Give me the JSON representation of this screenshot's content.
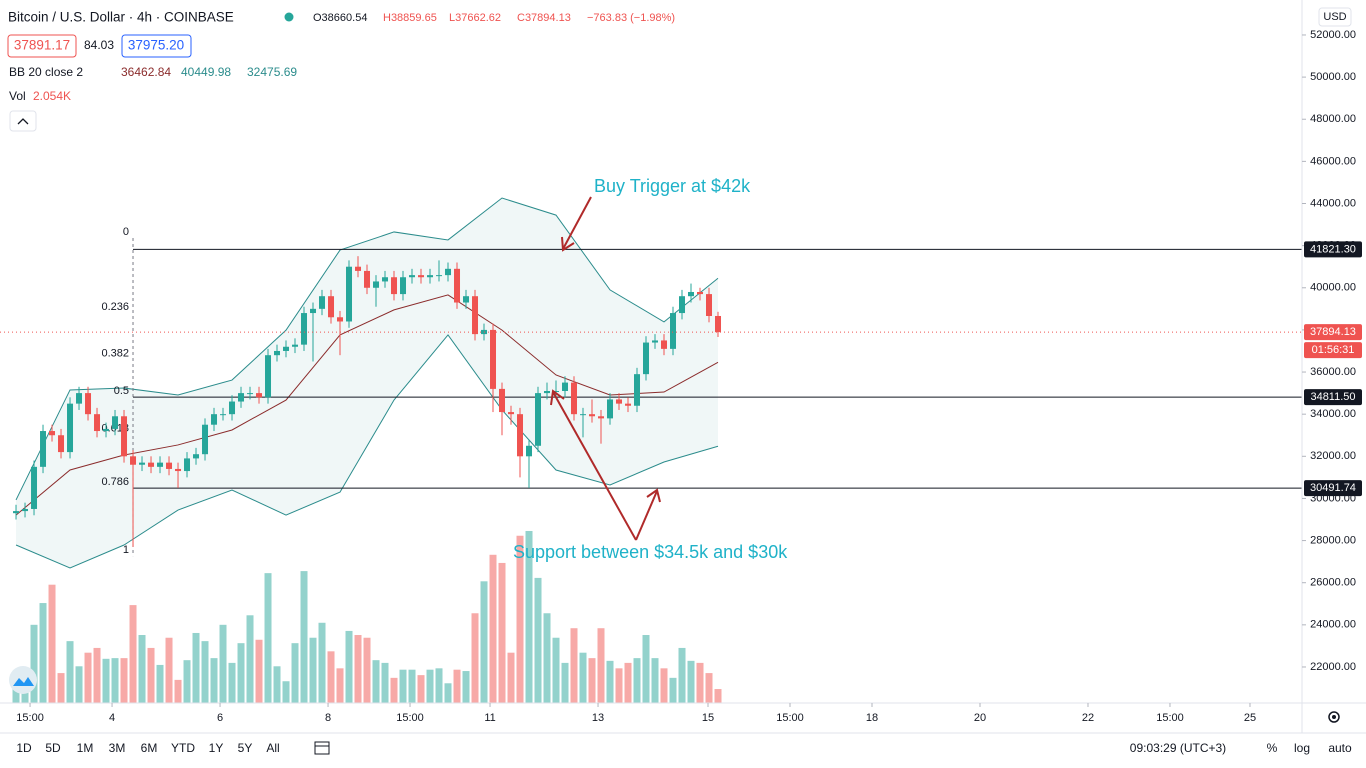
{
  "header": {
    "symbol": "Bitcoin / U.S. Dollar · 4h · COINBASE",
    "ohlc": [
      "O38660.54",
      "H38859.65",
      "L37662.62",
      "C37894.13",
      "−763.83 (−1.98%)"
    ]
  },
  "trade": {
    "sell": "37891.17",
    "spread": "84.03",
    "buy": "37975.20"
  },
  "indicators": {
    "bb_name": "BB 20 close 2",
    "bb_values": [
      "36462.84",
      "40449.98",
      "32475.69"
    ],
    "vol_name": "Vol",
    "vol_value": "2.054K"
  },
  "currency": "USD",
  "chart_data": {
    "type": "candlestick",
    "xlim": [
      -1.78,
      142.89
    ],
    "ylim": [
      20290,
      53660
    ],
    "grid": false,
    "up_color": "#26a69a",
    "down_color": "#ef5350",
    "yticks": [
      {
        "value": 22000,
        "label": "22000.00"
      },
      {
        "value": 24000,
        "label": "24000.00"
      },
      {
        "value": 26000,
        "label": "26000.00"
      },
      {
        "value": 28000,
        "label": "28000.00"
      },
      {
        "value": 30000,
        "label": "30000.00"
      },
      {
        "value": 32000,
        "label": "32000.00"
      },
      {
        "value": 34000,
        "label": "34000.00"
      },
      {
        "value": 36000,
        "label": "36000.00"
      },
      {
        "value": 38000,
        "label": "38000.00"
      },
      {
        "value": 40000,
        "label": "40000.00"
      },
      {
        "value": 42000,
        "label": "42000.00"
      },
      {
        "value": 44000,
        "label": "44000.00"
      },
      {
        "value": 46000,
        "label": "46000.00"
      },
      {
        "value": 48000,
        "label": "48000.00"
      },
      {
        "value": 50000,
        "label": "50000.00"
      },
      {
        "value": 52000,
        "label": "52000.00"
      }
    ],
    "xticks": [
      {
        "value": 1.56,
        "label": "15:00"
      },
      {
        "value": 10.67,
        "label": "4"
      },
      {
        "value": 22.67,
        "label": "6"
      },
      {
        "value": 34.67,
        "label": "8"
      },
      {
        "value": 43.78,
        "label": "15:00"
      },
      {
        "value": 52.67,
        "label": "11"
      },
      {
        "value": 64.67,
        "label": "13"
      },
      {
        "value": 76.89,
        "label": "15"
      },
      {
        "value": 86,
        "label": "15:00"
      },
      {
        "value": 95.11,
        "label": "18"
      },
      {
        "value": 107.11,
        "label": "20"
      },
      {
        "value": 119.11,
        "label": "22"
      },
      {
        "value": 128.22,
        "label": "15:00"
      },
      {
        "value": 137.11,
        "label": "25"
      }
    ],
    "open": [
      29300,
      29400,
      29500,
      31500,
      33200,
      33000,
      32200,
      34500,
      35000,
      34000,
      33200,
      33300,
      33900,
      32000,
      31600,
      31700,
      31500,
      31700,
      31400,
      31300,
      31900,
      32100,
      33500,
      34000,
      34000,
      34600,
      35000,
      35000,
      34800,
      36800,
      37000,
      37200,
      37300,
      38800,
      39000,
      39600,
      38600,
      38400,
      41000,
      40800,
      40000,
      40300,
      40500,
      39700,
      40500,
      40600,
      40500,
      40600,
      40600,
      40900,
      39300,
      39600,
      37800,
      38000,
      35200,
      34100,
      34000,
      32000,
      32500,
      35000,
      35100,
      35100,
      35500,
      34000,
      34000,
      33900,
      33800,
      34700,
      34500,
      34400,
      35900,
      37400,
      37500,
      37100,
      38800,
      39600,
      39800,
      39700,
      38660.54
    ],
    "high": [
      29700,
      29800,
      31800,
      33500,
      33500,
      33300,
      34800,
      35300,
      35300,
      34300,
      33600,
      34200,
      34200,
      32300,
      32000,
      32000,
      32000,
      32000,
      31700,
      32200,
      32400,
      33800,
      34300,
      34300,
      34900,
      35300,
      35300,
      35300,
      37100,
      37300,
      37500,
      37600,
      39100,
      39300,
      39900,
      39900,
      38900,
      41300,
      41500,
      41100,
      40600,
      40800,
      40800,
      40800,
      40900,
      40900,
      40900,
      41300,
      41200,
      41200,
      39900,
      39900,
      38300,
      38300,
      35500,
      34400,
      34300,
      32800,
      35300,
      35500,
      35600,
      35800,
      35800,
      34300,
      34700,
      34200,
      35000,
      35000,
      34800,
      36200,
      37700,
      37800,
      37800,
      39100,
      39900,
      40200,
      40000,
      40000,
      38859.65
    ],
    "low": [
      29000,
      29100,
      29200,
      31200,
      32700,
      31900,
      31900,
      34200,
      33700,
      32900,
      32900,
      33000,
      31700,
      27700,
      31300,
      31200,
      31200,
      31100,
      30500,
      31000,
      31600,
      31800,
      33200,
      33700,
      33700,
      34300,
      34700,
      34500,
      34500,
      36500,
      36700,
      36900,
      37000,
      36500,
      38700,
      38300,
      36800,
      38100,
      40500,
      39700,
      39100,
      40000,
      39400,
      39400,
      40200,
      40200,
      40200,
      40300,
      40300,
      39000,
      39000,
      37500,
      37500,
      34100,
      33000,
      33500,
      31000,
      30500,
      32200,
      34700,
      34800,
      34800,
      33700,
      32900,
      33600,
      32600,
      33500,
      34200,
      34100,
      34100,
      35600,
      37100,
      36800,
      36800,
      38500,
      39300,
      39400,
      38360,
      37662.62
    ],
    "close": [
      29400,
      29500,
      31500,
      33200,
      33000,
      32200,
      34500,
      35000,
      34000,
      33200,
      33300,
      33900,
      32000,
      31600,
      31700,
      31500,
      31700,
      31400,
      31300,
      31900,
      32100,
      33500,
      34000,
      34000,
      34600,
      35000,
      35000,
      34800,
      36800,
      37000,
      37200,
      37300,
      38800,
      39000,
      39600,
      38600,
      38400,
      41000,
      40800,
      40000,
      40300,
      40500,
      39700,
      40500,
      40600,
      40500,
      40600,
      40600,
      40900,
      39300,
      39600,
      37800,
      38000,
      35200,
      34100,
      34000,
      32000,
      32500,
      35000,
      35100,
      35100,
      35500,
      34000,
      34000,
      33900,
      33800,
      34700,
      34500,
      34400,
      35900,
      37400,
      37500,
      37100,
      38800,
      39600,
      39800,
      39700,
      38660,
      37894.13
    ],
    "bands": {
      "index": [
        0,
        6,
        12,
        18,
        24,
        30,
        36,
        42,
        48,
        54,
        60,
        66,
        72,
        78
      ],
      "upper": [
        29930,
        35150,
        35240,
        34910,
        35620,
        37990,
        41790,
        42650,
        42270,
        44260,
        43450,
        39900,
        38380,
        40449.98
      ],
      "middle": [
        29210,
        31350,
        32060,
        32540,
        33250,
        34670,
        37760,
        38950,
        39660,
        37990,
        35860,
        34910,
        35050,
        36462.84
      ],
      "lower": [
        27790,
        26700,
        27790,
        29450,
        30400,
        29210,
        30300,
        34670,
        37760,
        34200,
        31350,
        30640,
        31730,
        32475.69
      ],
      "band_color": "#2b8c8c",
      "middle_color": "#8b2c2c"
    },
    "volume": {
      "ylim": [
        0,
        103.4
      ],
      "values": [
        3.0,
        3.4,
        11.5,
        14.7,
        17.4,
        4.4,
        9.1,
        5.4,
        7.4,
        8.1,
        6.5,
        6.6,
        6.6,
        14.4,
        10,
        8.1,
        5.6,
        9.6,
        3.4,
        6.3,
        10.3,
        9.1,
        6.6,
        11.5,
        5.9,
        8.8,
        12.9,
        9.3,
        19.1,
        5.4,
        3.2,
        8.8,
        19.4,
        9.6,
        11.8,
        7.6,
        5.1,
        10.6,
        10,
        9.6,
        6.3,
        5.9,
        3.7,
        4.9,
        4.9,
        4.1,
        4.9,
        5.1,
        2.9,
        4.9,
        4.7,
        13.2,
        17.9,
        21.8,
        20.6,
        7.4,
        24.6,
        25.3,
        18.4,
        13.2,
        9.6,
        5.9,
        11,
        7.4,
        6.6,
        11,
        6.2,
        5.1,
        5.9,
        6.6,
        10,
        6.6,
        5.1,
        3.7,
        8.1,
        6.2,
        5.9,
        4.4,
        2.054
      ],
      "up_color": "#93d2cc",
      "down_color": "#f7a9a7"
    },
    "price_lines": [
      {
        "value": 41821.3,
        "label": "41821.30"
      },
      {
        "value": 34811.5,
        "label": "34811.50"
      },
      {
        "value": 30491.74,
        "label": "30491.74"
      }
    ],
    "last_price": {
      "value": 37894.13,
      "label": "37894.13"
    },
    "countdown": "01:56:31",
    "fib": {
      "high": 42360,
      "low": 27260,
      "levels": [
        0,
        0.236,
        0.382,
        0.5,
        0.618,
        0.786,
        1
      ]
    },
    "annotations": [
      "Buy Trigger at $42k",
      "Support between $34.5k and $30k"
    ]
  },
  "toolbar": {
    "ranges": [
      "1D",
      "5D",
      "1M",
      "3M",
      "6M",
      "YTD",
      "1Y",
      "5Y",
      "All"
    ],
    "clock": "09:03:29 (UTC+3)",
    "options": [
      "%",
      "log",
      "auto"
    ]
  }
}
